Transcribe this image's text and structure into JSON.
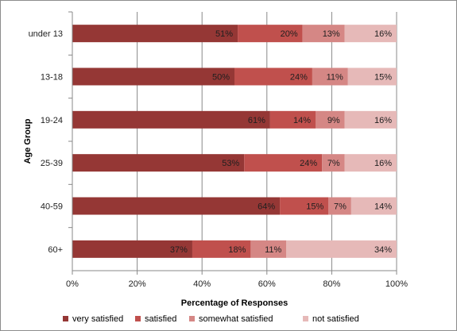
{
  "chart_data": {
    "type": "bar",
    "orientation": "horizontal",
    "stacked": "percent",
    "title": "",
    "xlabel": "Percentage of Responses",
    "ylabel": "Age Group",
    "xlim": [
      0,
      100
    ],
    "x_ticks": [
      "0%",
      "20%",
      "40%",
      "60%",
      "80%",
      "100%"
    ],
    "grid": "vertical",
    "legend_position": "bottom",
    "categories": [
      "under 13",
      "13-18",
      "19-24",
      "25-39",
      "40-59",
      "60+"
    ],
    "series": [
      {
        "name": "very satisfied",
        "color": "#953735",
        "values": [
          51,
          50,
          61,
          53,
          64,
          37
        ],
        "labels": [
          "51%",
          "50%",
          "61%",
          "53%",
          "64%",
          "37%"
        ]
      },
      {
        "name": "satisfied",
        "color": "#c0504d",
        "values": [
          20,
          24,
          14,
          24,
          15,
          18
        ],
        "labels": [
          "20%",
          "24%",
          "14%",
          "24%",
          "15%",
          "18%"
        ]
      },
      {
        "name": "somewhat satisfied",
        "color": "#d58785",
        "values": [
          13,
          11,
          9,
          7,
          7,
          11
        ],
        "labels": [
          "13%",
          "11%",
          "9%",
          "7%",
          "7%",
          "11%"
        ]
      },
      {
        "name": "not satisfied",
        "color": "#e6b9b8",
        "values": [
          16,
          15,
          16,
          16,
          14,
          34
        ],
        "labels": [
          "16%",
          "15%",
          "16%",
          "16%",
          "14%",
          "34%"
        ]
      }
    ]
  }
}
